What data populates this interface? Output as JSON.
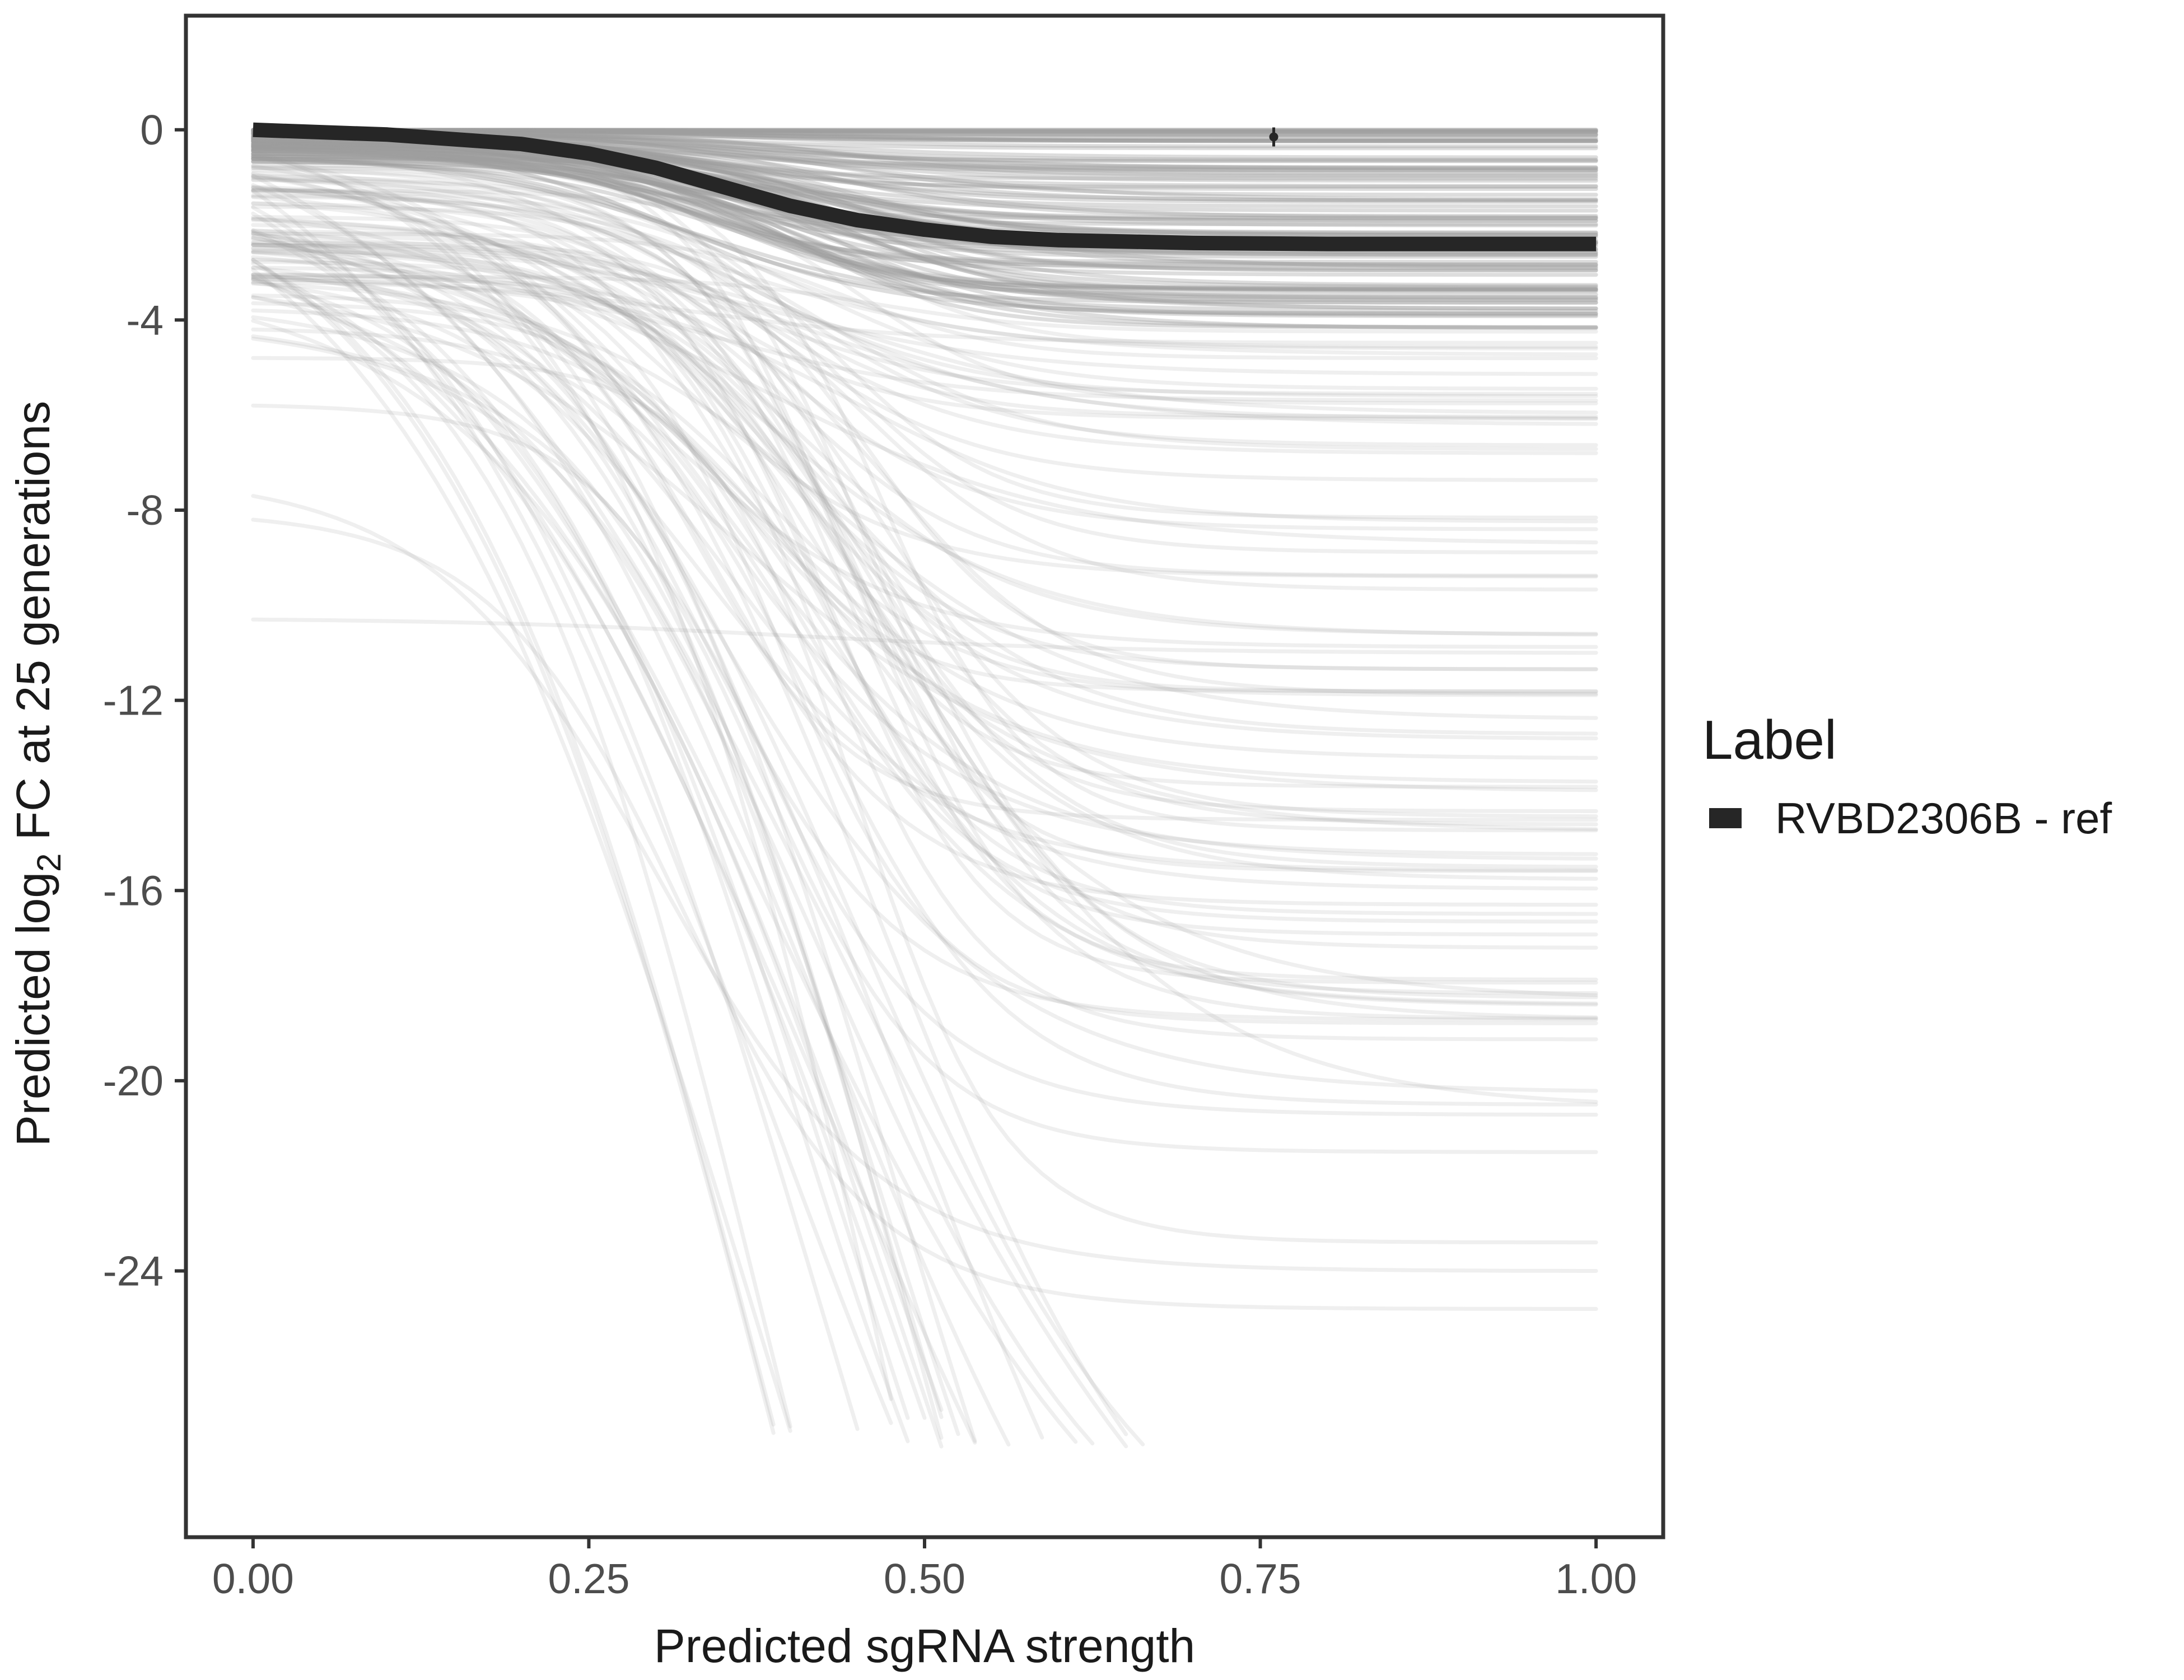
{
  "chart_data": {
    "type": "line",
    "title": "",
    "xlabel": "Predicted sgRNA strength",
    "ylabel_parts": [
      "Predicted  log",
      "2",
      " FC at 25 generations"
    ],
    "xlim": [
      -0.05,
      1.05
    ],
    "ylim": [
      -29.6,
      2.4
    ],
    "x_ticks": [
      0.0,
      0.25,
      0.5,
      0.75,
      1.0
    ],
    "x_tick_labels": [
      "0.00",
      "0.25",
      "0.50",
      "0.75",
      "1.00"
    ],
    "y_ticks": [
      0,
      -4,
      -8,
      -12,
      -16,
      -20,
      -24
    ],
    "y_tick_labels": [
      "0",
      "-4",
      "-8",
      "-12",
      "-16",
      "-20",
      "-24"
    ],
    "grid": false,
    "legend": {
      "title": "Label",
      "position": "right",
      "entries": [
        {
          "label": "RVBD2306B - ref",
          "color": "#262626"
        }
      ]
    },
    "highlight_series": {
      "name": "RVBD2306B - ref",
      "x": [
        0.0,
        0.1,
        0.2,
        0.25,
        0.3,
        0.35,
        0.4,
        0.45,
        0.5,
        0.55,
        0.6,
        0.7,
        0.8,
        0.9,
        1.0
      ],
      "y": [
        0.0,
        -0.1,
        -0.3,
        -0.5,
        -0.8,
        -1.2,
        -1.6,
        -1.9,
        -2.1,
        -2.25,
        -2.32,
        -2.38,
        -2.4,
        -2.4,
        -2.4
      ],
      "color": "#262626"
    },
    "highlight_point": {
      "x": 0.76,
      "y": -0.15,
      "ymin": -0.35,
      "ymax": 0.05
    },
    "background_curves": {
      "description_count": 220,
      "color": "#9e9e9e",
      "x_range": [
        0.0,
        1.0
      ],
      "y_end_range": [
        -25.0,
        0.0
      ],
      "y_clip_min": -27.8,
      "curves": [
        {
          "y0": -8.2,
          "y_end": -24.8,
          "mid": 0.32,
          "steep": 14
        },
        {
          "y0": -7.7,
          "y_end": -24.0,
          "mid": 0.3,
          "steep": 12
        },
        {
          "y0": -5.8,
          "y_end": -21.5,
          "mid": 0.38,
          "steep": 16
        },
        {
          "y0": -10.3,
          "y_end": -11.0,
          "mid": 0.4,
          "steep": 8
        },
        {
          "y0": -4.8,
          "y_end": -23.4,
          "mid": 0.45,
          "steep": 18
        },
        {
          "y0": -4.2,
          "y_end": -20.5,
          "mid": 0.42,
          "steep": 14
        },
        {
          "y0": -3.8,
          "y_end": -18.4,
          "mid": 0.44,
          "steep": 12
        },
        {
          "y0": -2.9,
          "y_end": -15.5,
          "mid": 0.46,
          "steep": 14
        },
        {
          "y0": -2.5,
          "y_end": -12.7,
          "mid": 0.43,
          "steep": 12
        },
        {
          "y0": -1.9,
          "y_end": -10.6,
          "mid": 0.4,
          "steep": 12
        },
        {
          "y0": -1.3,
          "y_end": -8.4,
          "mid": 0.38,
          "steep": 13
        },
        {
          "y0": -1.0,
          "y_end": -6.8,
          "mid": 0.37,
          "steep": 12
        },
        {
          "y0": -0.8,
          "y_end": -5.6,
          "mid": 0.36,
          "steep": 12
        },
        {
          "y0": -0.6,
          "y_end": -4.6,
          "mid": 0.35,
          "steep": 12
        },
        {
          "y0": -0.4,
          "y_end": -3.4,
          "mid": 0.34,
          "steep": 12
        },
        {
          "y0": -0.2,
          "y_end": -2.6,
          "mid": 0.33,
          "steep": 12
        }
      ]
    }
  }
}
